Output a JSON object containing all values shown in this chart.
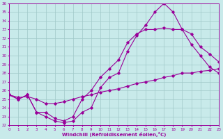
{
  "xlabel": "Windchill (Refroidissement éolien,°C)",
  "ylabel": "",
  "background_color": "#c8eaea",
  "grid_color": "#a0c8c8",
  "line_color": "#990099",
  "xlim": [
    0,
    23
  ],
  "ylim": [
    22,
    36
  ],
  "xticks": [
    0,
    1,
    2,
    3,
    4,
    5,
    6,
    7,
    8,
    9,
    10,
    11,
    12,
    13,
    14,
    15,
    16,
    17,
    18,
    19,
    20,
    21,
    22,
    23
  ],
  "yticks": [
    22,
    23,
    24,
    25,
    26,
    27,
    28,
    29,
    30,
    31,
    32,
    33,
    34,
    35,
    36
  ],
  "line1_x": [
    0,
    1,
    2,
    3,
    4,
    5,
    6,
    7,
    8,
    9,
    10,
    11,
    12,
    13,
    14,
    15,
    16,
    17,
    18,
    19,
    20,
    21,
    22,
    23
  ],
  "line1_y": [
    25.5,
    25.0,
    25.5,
    23.5,
    23.0,
    22.5,
    22.3,
    22.5,
    23.5,
    24.0,
    26.3,
    27.5,
    28.0,
    30.5,
    32.3,
    33.5,
    35.0,
    36.0,
    35.0,
    33.0,
    31.3,
    30.0,
    28.7,
    28.0
  ],
  "line2_x": [
    0,
    1,
    2,
    3,
    4,
    5,
    6,
    7,
    8,
    9,
    10,
    11,
    12,
    13,
    14,
    15,
    16,
    17,
    18,
    19,
    20,
    21,
    22,
    23
  ],
  "line2_y": [
    25.5,
    25.0,
    25.5,
    23.5,
    23.5,
    22.8,
    22.5,
    23.0,
    25.0,
    26.0,
    27.5,
    28.5,
    29.5,
    31.5,
    32.5,
    33.0,
    33.0,
    33.2,
    33.0,
    33.0,
    32.5,
    31.0,
    30.2,
    29.3
  ],
  "line3_x": [
    0,
    1,
    2,
    3,
    4,
    5,
    6,
    7,
    8,
    9,
    10,
    11,
    12,
    13,
    14,
    15,
    16,
    17,
    18,
    19,
    20,
    21,
    22,
    23
  ],
  "line3_y": [
    25.5,
    25.2,
    25.3,
    25.0,
    24.5,
    24.5,
    24.7,
    25.0,
    25.3,
    25.5,
    25.8,
    26.0,
    26.2,
    26.5,
    26.8,
    27.0,
    27.2,
    27.5,
    27.7,
    28.0,
    28.0,
    28.2,
    28.3,
    28.5
  ]
}
